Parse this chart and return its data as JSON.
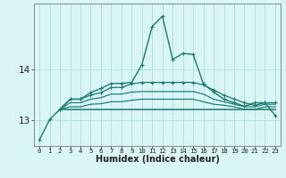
{
  "xlabel": "Humidex (Indice chaleur)",
  "bg_color": "#daf5f5",
  "grid_color": "#aadede",
  "line_color": "#1a7a6e",
  "yticks": [
    13,
    14
  ],
  "ylim": [
    12.5,
    15.3
  ],
  "xlim": [
    -0.5,
    23.5
  ],
  "xticks": [
    0,
    1,
    2,
    3,
    4,
    5,
    6,
    7,
    8,
    9,
    10,
    11,
    12,
    13,
    14,
    15,
    16,
    17,
    18,
    19,
    20,
    21,
    22,
    23
  ],
  "line1": [
    12.62,
    13.02,
    13.22,
    13.42,
    13.42,
    13.55,
    13.63,
    13.73,
    13.73,
    13.75,
    14.1,
    14.85,
    15.05,
    14.2,
    14.32,
    14.3,
    13.72,
    13.56,
    13.42,
    13.35,
    13.28,
    13.35,
    13.35,
    13.1
  ],
  "line2": [
    null,
    null,
    13.22,
    13.42,
    13.42,
    13.5,
    13.55,
    13.65,
    13.65,
    13.72,
    13.75,
    13.75,
    13.75,
    13.75,
    13.75,
    13.75,
    13.7,
    13.6,
    13.5,
    13.42,
    13.35,
    13.3,
    13.35,
    13.35
  ],
  "line3": [
    null,
    null,
    13.22,
    13.35,
    13.35,
    13.42,
    13.45,
    13.52,
    13.52,
    13.56,
    13.57,
    13.57,
    13.57,
    13.57,
    13.57,
    13.57,
    13.52,
    13.42,
    13.37,
    13.32,
    13.27,
    13.27,
    13.32,
    13.32
  ],
  "line4": [
    null,
    null,
    13.22,
    13.27,
    13.27,
    13.32,
    13.33,
    13.37,
    13.37,
    13.4,
    13.42,
    13.42,
    13.42,
    13.42,
    13.42,
    13.42,
    13.37,
    13.32,
    13.3,
    13.27,
    13.22,
    13.22,
    13.27,
    13.27
  ],
  "line5": [
    null,
    null,
    13.22,
    13.22,
    13.22,
    13.22,
    13.22,
    13.22,
    13.22,
    13.22,
    13.22,
    13.22,
    13.22,
    13.22,
    13.22,
    13.22,
    13.22,
    13.22,
    13.22,
    13.22,
    13.22,
    13.22,
    13.22,
    13.22
  ]
}
